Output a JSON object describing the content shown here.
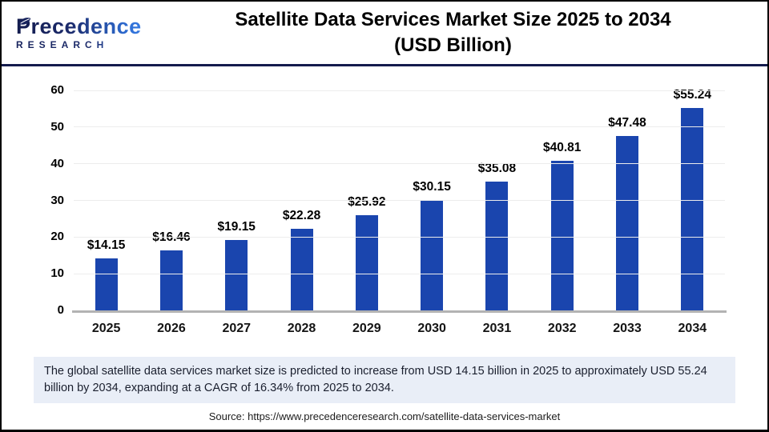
{
  "header": {
    "logo_name": "Precedence",
    "logo_subname": "RESEARCH",
    "title_line1": "Satellite Data Services Market Size 2025 to 2034",
    "title_line2": "(USD Billion)"
  },
  "chart_data": {
    "type": "bar",
    "title": "Satellite Data Services Market Size 2025 to 2034 (USD Billion)",
    "categories": [
      "2025",
      "2026",
      "2027",
      "2028",
      "2029",
      "2030",
      "2031",
      "2032",
      "2033",
      "2034"
    ],
    "values": [
      14.15,
      16.46,
      19.15,
      22.28,
      25.92,
      30.15,
      35.08,
      40.81,
      47.48,
      55.24
    ],
    "value_labels": [
      "$14.15",
      "$16.46",
      "$19.15",
      "$22.28",
      "$25.92",
      "$30.15",
      "$35.08",
      "$40.81",
      "$47.48",
      "$55.24"
    ],
    "xlabel": "",
    "ylabel": "",
    "ylim": [
      0,
      60
    ],
    "yticks": [
      0,
      10,
      20,
      30,
      40,
      50,
      60
    ],
    "grid": true,
    "legend": false,
    "bar_color": "#1a45ae"
  },
  "footer": {
    "description": "The global satellite data services market size is predicted to increase from USD 14.15 billion in 2025 to approximately USD 55.24 billion by 2034, expanding at a CAGR of 16.34% from 2025 to 2034.",
    "source": "Source: https://www.precedenceresearch.com/satellite-data-services-market"
  },
  "colors": {
    "bar": "#1a45ae",
    "divider": "#141b4d",
    "logo_dark": "#16225c",
    "logo_light": "#2f6fd6",
    "description_background": "#e9eef7",
    "gridline": "#ececec",
    "baseline": "#b3b3b3"
  }
}
